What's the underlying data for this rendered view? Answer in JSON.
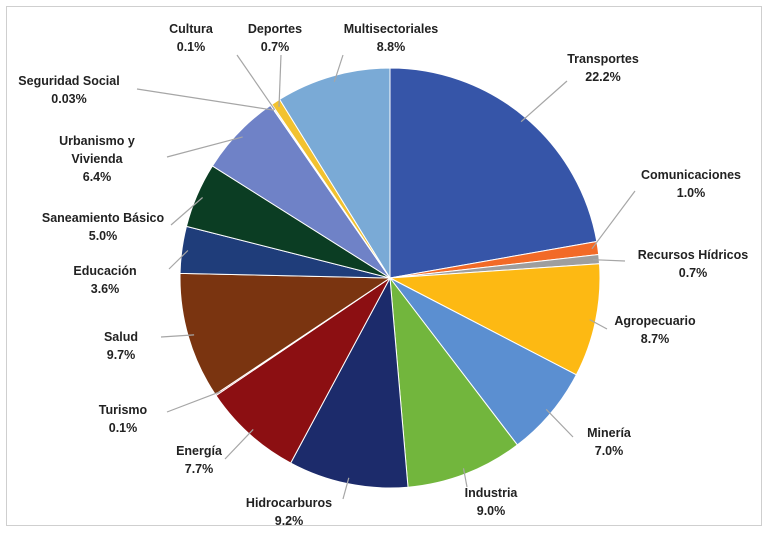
{
  "chart_data": {
    "type": "pie",
    "title": "",
    "legend": "none",
    "slices": [
      {
        "name": "Transportes",
        "label": "22.2%",
        "value": 22.2,
        "color": "#3655a8"
      },
      {
        "name": "Comunicaciones",
        "label": "1.0%",
        "value": 1.0,
        "color": "#f26a27"
      },
      {
        "name": "Recursos Hídricos",
        "label": "0.7%",
        "value": 0.7,
        "color": "#9e9e9e"
      },
      {
        "name": "Agropecuario",
        "label": "8.7%",
        "value": 8.7,
        "color": "#fdb913"
      },
      {
        "name": "Minería",
        "label": "7.0%",
        "value": 7.0,
        "color": "#5b8fd1"
      },
      {
        "name": "Industria",
        "label": "9.0%",
        "value": 9.0,
        "color": "#72b63d"
      },
      {
        "name": "Hidrocarburos",
        "label": "9.2%",
        "value": 9.2,
        "color": "#1c2b6b"
      },
      {
        "name": "Energía",
        "label": "7.7%",
        "value": 7.7,
        "color": "#8c0f12"
      },
      {
        "name": "Turismo",
        "label": "0.1%",
        "value": 0.1,
        "color": "#b22222"
      },
      {
        "name": "Salud",
        "label": "9.7%",
        "value": 9.7,
        "color": "#7a3410"
      },
      {
        "name": "Educación",
        "label": "3.6%",
        "value": 3.6,
        "color": "#1f3d7a"
      },
      {
        "name": "Saneamiento Básico",
        "label": "5.0%",
        "value": 5.0,
        "color": "#0b3d23"
      },
      {
        "name": "Urbanismo y Vivienda",
        "label": "6.4%",
        "value": 6.4,
        "color": "#6f82c7"
      },
      {
        "name": "Seguridad Social",
        "label": "0.03%",
        "value": 0.03,
        "color": "#c5c9e0"
      },
      {
        "name": "Cultura",
        "label": "0.1%",
        "value": 0.1,
        "color": "#c8c8c8"
      },
      {
        "name": "Deportes",
        "label": "0.7%",
        "value": 0.7,
        "color": "#f2c230"
      },
      {
        "name": "Multisectoriales",
        "label": "8.8%",
        "value": 8.8,
        "color": "#7aaad6"
      }
    ]
  }
}
